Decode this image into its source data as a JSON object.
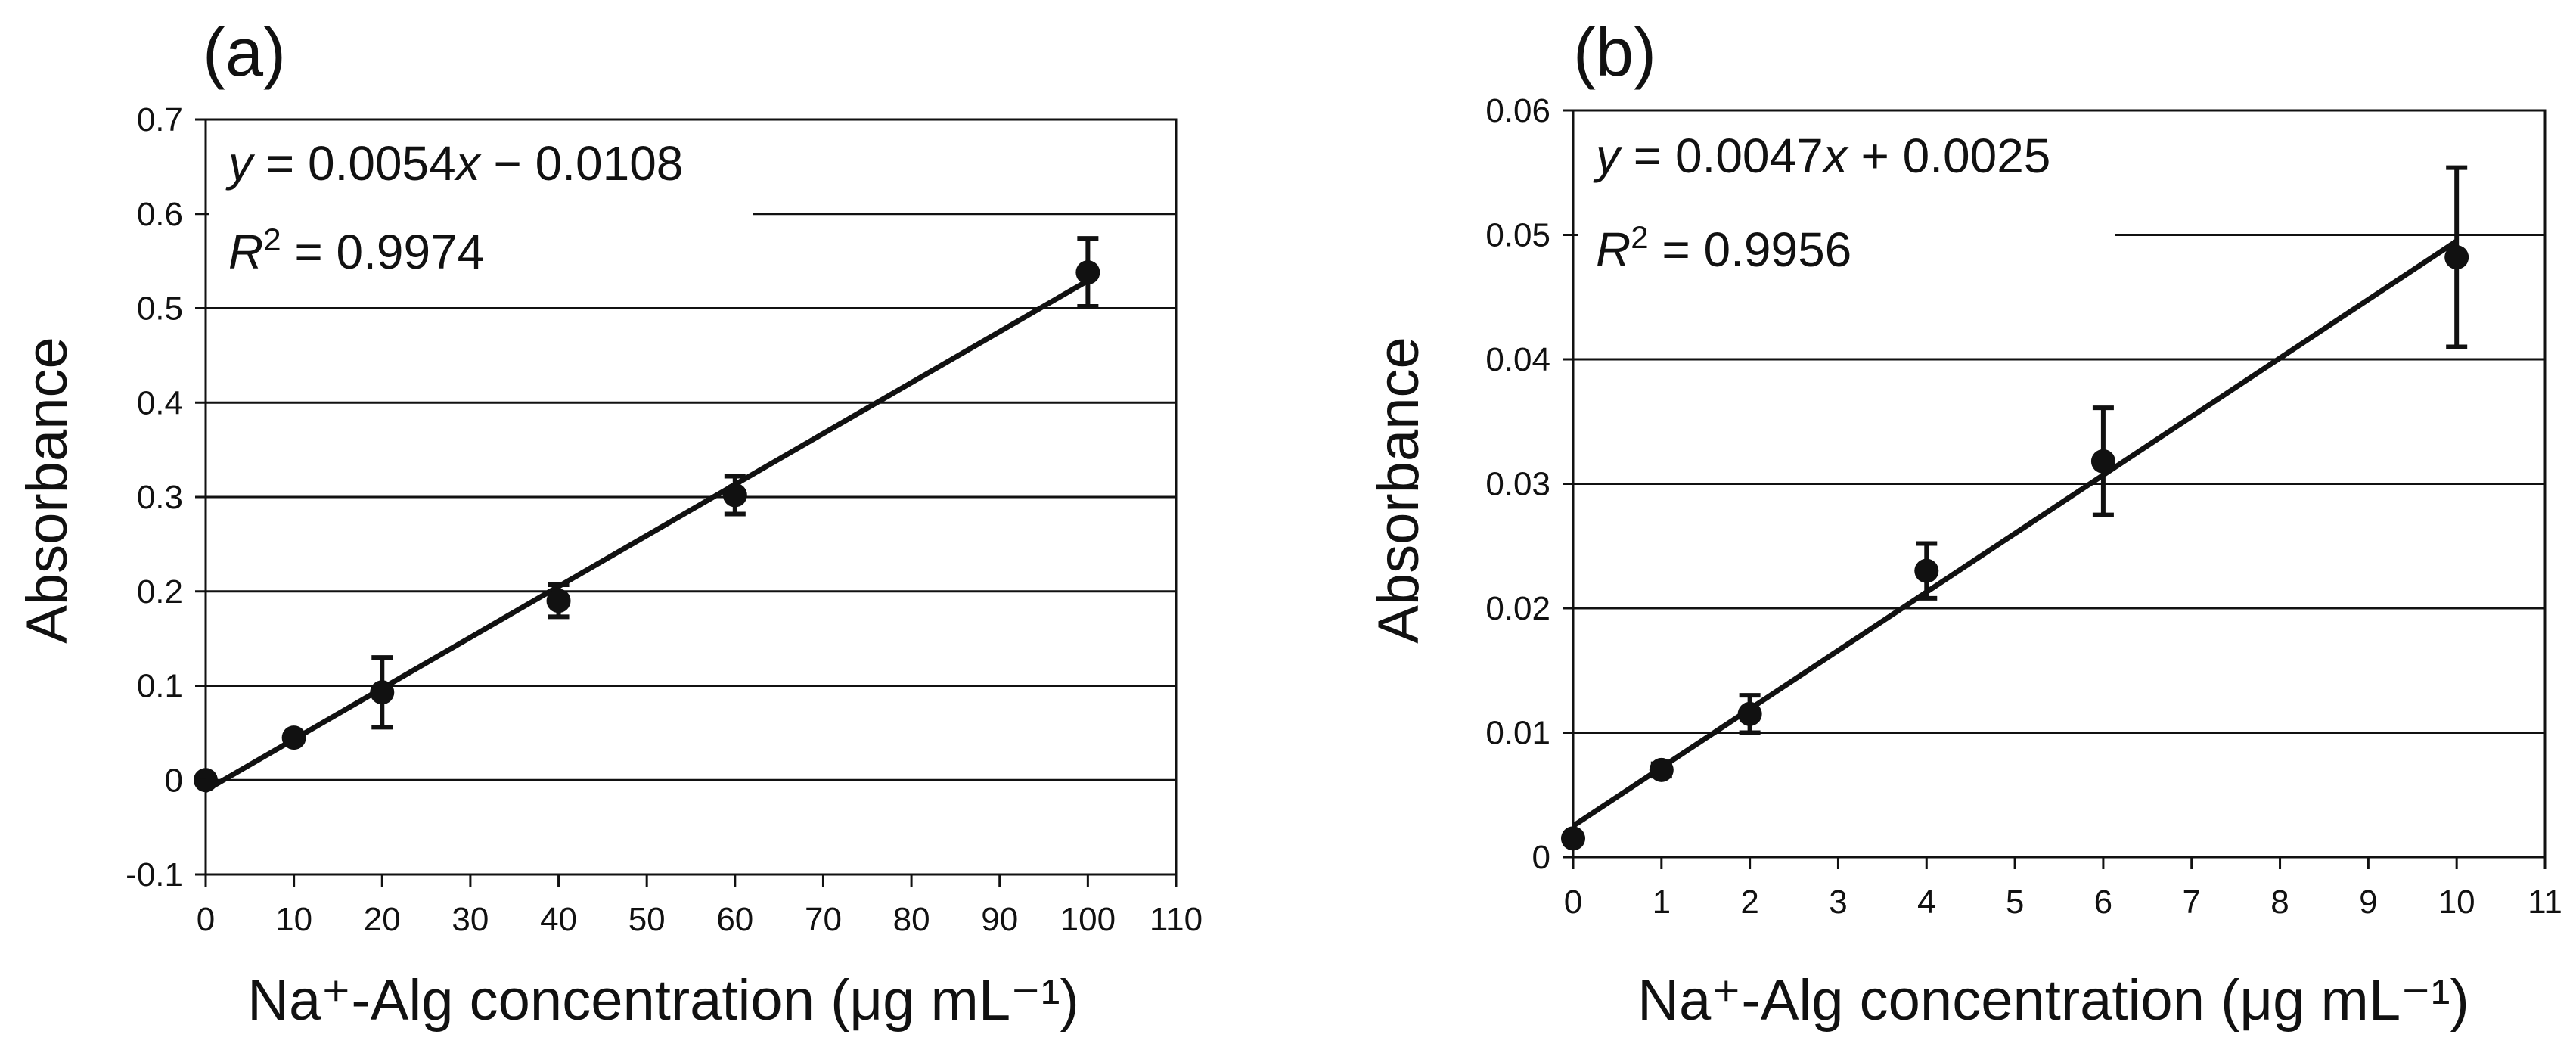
{
  "chart_data": [
    {
      "type": "scatter",
      "panel_label": "(a)",
      "xlabel": "Na⁺-Alg concentration (μg mL⁻¹)",
      "ylabel": "Absorbance",
      "xlim": [
        0,
        110
      ],
      "ylim": [
        -0.1,
        0.7
      ],
      "xticks": [
        0,
        10,
        20,
        30,
        40,
        50,
        60,
        70,
        80,
        90,
        100,
        110
      ],
      "yticks": [
        -0.1,
        0,
        0.1,
        0.2,
        0.3,
        0.4,
        0.5,
        0.6,
        0.7
      ],
      "xtick_labels": [
        "0",
        "10",
        "20",
        "30",
        "40",
        "50",
        "60",
        "70",
        "80",
        "90",
        "100",
        "110"
      ],
      "ytick_labels": [
        "-0.1",
        "0",
        "0.1",
        "0.2",
        "0.3",
        "0.4",
        "0.5",
        "0.6",
        "0.7"
      ],
      "grid": "horizontal",
      "points": [
        {
          "x": 0,
          "y": 0.0,
          "err": 0.0
        },
        {
          "x": 10,
          "y": 0.045,
          "err": 0.004
        },
        {
          "x": 20,
          "y": 0.093,
          "err": 0.037
        },
        {
          "x": 40,
          "y": 0.19,
          "err": 0.017
        },
        {
          "x": 60,
          "y": 0.302,
          "err": 0.02
        },
        {
          "x": 100,
          "y": 0.538,
          "err": 0.036
        }
      ],
      "fit": {
        "slope": 0.0054,
        "intercept": -0.0108,
        "x_range": [
          0,
          100
        ]
      },
      "equation": {
        "y": "y",
        "eq_text": " = 0.0054",
        "x": "x",
        "rest": " − 0.0108"
      },
      "r2": {
        "r": "R",
        "sup": "2",
        "value": " = 0.9974"
      }
    },
    {
      "type": "scatter",
      "panel_label": "(b)",
      "xlabel": "Na⁺-Alg concentration (μg mL⁻¹)",
      "ylabel": "Absorbance",
      "xlim": [
        0,
        11
      ],
      "ylim": [
        0,
        0.06
      ],
      "xticks": [
        0,
        1,
        2,
        3,
        4,
        5,
        6,
        7,
        8,
        9,
        10,
        11
      ],
      "yticks": [
        0,
        0.01,
        0.02,
        0.03,
        0.04,
        0.05,
        0.06
      ],
      "xtick_labels": [
        "0",
        "1",
        "2",
        "3",
        "4",
        "5",
        "6",
        "7",
        "8",
        "9",
        "10",
        "11"
      ],
      "ytick_labels": [
        "0",
        "0.01",
        "0.02",
        "0.03",
        "0.04",
        "0.05",
        "0.06"
      ],
      "grid": "horizontal",
      "points": [
        {
          "x": 0,
          "y": 0.0015,
          "err": 0.0
        },
        {
          "x": 1,
          "y": 0.007,
          "err": 0.0005
        },
        {
          "x": 2,
          "y": 0.0115,
          "err": 0.0015
        },
        {
          "x": 4,
          "y": 0.023,
          "err": 0.0022
        },
        {
          "x": 6,
          "y": 0.0318,
          "err": 0.0043
        },
        {
          "x": 10,
          "y": 0.0482,
          "err": 0.0072
        }
      ],
      "fit": {
        "slope": 0.0047,
        "intercept": 0.0025,
        "x_range": [
          0,
          10
        ]
      },
      "equation": {
        "y": "y",
        "eq_text": " = 0.0047",
        "x": "x",
        "rest": " + 0.0025"
      },
      "r2": {
        "r": "R",
        "sup": "2",
        "value": " = 0.9956"
      }
    }
  ]
}
